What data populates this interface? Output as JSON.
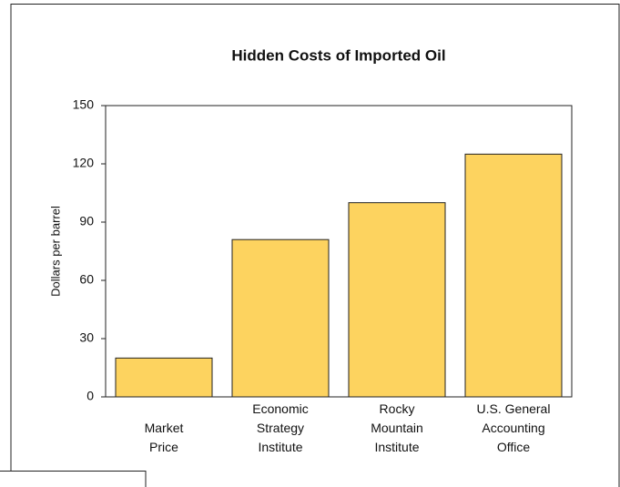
{
  "chart_data": {
    "type": "bar",
    "title": "Hidden Costs of Imported Oil",
    "y_label": "Dollars per barrel",
    "categories": [
      "Market\nPrice",
      "Economic\nStrategy\nInstitute",
      "Rocky\nMountain\nInstitute",
      "U.S. General\nAccounting\nOffice"
    ],
    "values": [
      20,
      81,
      100,
      125
    ],
    "color": "#fdd35f",
    "ylim": [
      0,
      150
    ],
    "yticks": [
      0,
      30,
      60,
      90,
      120,
      150
    ],
    "grid": false
  }
}
